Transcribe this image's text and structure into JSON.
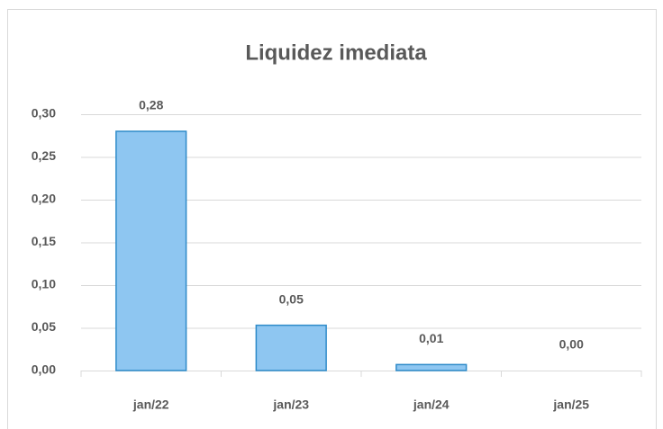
{
  "chart_data": {
    "type": "bar",
    "title": "Liquidez imediata",
    "categories": [
      "jan/22",
      "jan/23",
      "jan/24",
      "jan/25"
    ],
    "values": [
      0.28,
      0.053,
      0.007,
      0
    ],
    "value_labels": [
      "0,28",
      "0,05",
      "0,01",
      "0,00"
    ],
    "color": "#8ec6f1",
    "edgecolor": "#2e8bc9",
    "ylim": [
      0,
      0.3
    ],
    "yticks": [
      {
        "value": 0,
        "label": "0,00"
      },
      {
        "value": 0.05,
        "label": "0,05"
      },
      {
        "value": 0.1,
        "label": "0,10"
      },
      {
        "value": 0.15,
        "label": "0,15"
      },
      {
        "value": 0.2,
        "label": "0,20"
      },
      {
        "value": 0.25,
        "label": "0,25"
      },
      {
        "value": 0.3,
        "label": "0,30"
      }
    ],
    "grid": true
  }
}
